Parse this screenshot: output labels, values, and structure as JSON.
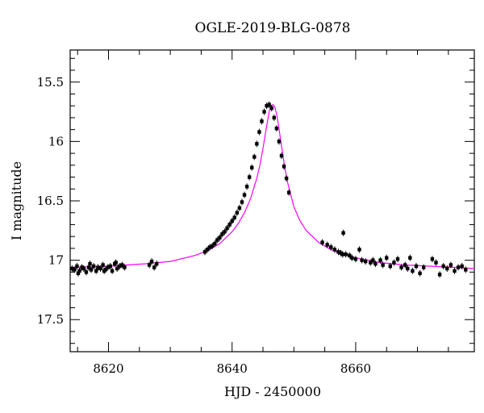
{
  "chart_data": {
    "type": "scatter",
    "title": "OGLE-2019-BLG-0878",
    "xlabel": "HJD - 2450000",
    "ylabel": "I magnitude",
    "xlim": [
      8613.8,
      8679.2
    ],
    "ylim": [
      17.77,
      15.23
    ],
    "y_inverted": true,
    "x_ticks": [
      8620,
      8640,
      8660
    ],
    "x_tick_labels": [
      "8620",
      "8640",
      "8660"
    ],
    "y_ticks": [
      15.5,
      16,
      16.5,
      17,
      17.5
    ],
    "y_tick_labels": [
      "15.5",
      "16",
      "16.5",
      "17",
      "17.5"
    ],
    "grid": false,
    "legend": "none",
    "colors": {
      "data": "#000000",
      "model": "#ff00ff",
      "axes": "#000000"
    },
    "series": [
      {
        "kind": "points",
        "x": [
          8614.1,
          8614.5,
          8614.9,
          8615.3,
          8615.7,
          8616.0,
          8616.4,
          8616.8,
          8617.2,
          8617.6,
          8618.0,
          8618.3,
          8618.7,
          8619.1,
          8619.5,
          8619.9,
          8620.3,
          8620.6,
          8621.0,
          8621.4,
          8621.8,
          8622.2,
          8622.6,
          8615.1,
          8617.0,
          8619.3,
          8621.2,
          8626.6,
          8627.0,
          8627.4,
          8627.8,
          8635.6,
          8636.0,
          8636.4,
          8636.8,
          8637.2,
          8637.6,
          8638.0,
          8638.4,
          8638.8,
          8639.2,
          8639.6,
          8640.0,
          8640.4,
          8640.8,
          8641.2,
          8641.6,
          8642.0,
          8642.4,
          8642.8,
          8643.2,
          8643.6,
          8644.0,
          8644.4,
          8644.8,
          8645.2,
          8645.6,
          8646.0,
          8646.4,
          8646.8,
          8647.2,
          8647.6,
          8648.0,
          8648.4,
          8648.8,
          8649.2,
          8654.6,
          8655.4,
          8656.0,
          8656.6,
          8657.2,
          8657.6,
          8658.0,
          8658.4,
          8659.0,
          8659.4,
          8660.0,
          8660.6,
          8661.0,
          8661.6,
          8662.4,
          8662.8,
          8663.2,
          8664.0,
          8664.4,
          8665.0,
          8665.6,
          8666.2,
          8666.8,
          8667.4,
          8668.0,
          8668.4,
          8668.8,
          8669.2,
          8669.8,
          8670.4,
          8671.0,
          8672.4,
          8673.0,
          8673.6,
          8674.2,
          8674.8,
          8675.4,
          8676.0,
          8676.6,
          8677.2,
          8677.8,
          8657.9
        ],
        "y": [
          17.07,
          17.08,
          17.05,
          17.09,
          17.06,
          17.07,
          17.1,
          17.06,
          17.08,
          17.05,
          17.09,
          17.06,
          17.07,
          17.04,
          17.08,
          17.06,
          17.05,
          17.09,
          17.03,
          17.07,
          17.05,
          17.04,
          17.06,
          17.11,
          17.03,
          17.09,
          17.02,
          17.04,
          17.01,
          17.06,
          17.03,
          16.93,
          16.91,
          16.89,
          16.88,
          16.86,
          16.83,
          16.81,
          16.78,
          16.76,
          16.73,
          16.7,
          16.67,
          16.64,
          16.6,
          16.56,
          16.51,
          16.45,
          16.38,
          16.3,
          16.22,
          16.13,
          16.02,
          15.92,
          15.83,
          15.75,
          15.7,
          15.69,
          15.72,
          15.8,
          15.89,
          16.0,
          16.12,
          16.21,
          16.31,
          16.43,
          16.85,
          16.87,
          16.89,
          16.91,
          16.93,
          16.94,
          16.77,
          16.95,
          16.96,
          16.98,
          16.99,
          16.91,
          17.0,
          17.01,
          17.02,
          17.0,
          17.03,
          17.0,
          17.04,
          16.98,
          17.05,
          17.02,
          16.99,
          17.06,
          17.04,
          17.07,
          16.98,
          17.09,
          17.05,
          17.11,
          17.06,
          16.99,
          17.02,
          17.12,
          17.05,
          17.07,
          17.04,
          17.09,
          17.06,
          17.05,
          17.08,
          16.95
        ]
      },
      {
        "kind": "line",
        "model": "point-lens fit",
        "x": [
          8613.8,
          8620,
          8626,
          8630,
          8634,
          8636,
          8638,
          8640,
          8641,
          8642,
          8643,
          8644,
          8644.5,
          8645,
          8645.5,
          8646,
          8646.3,
          8646.6,
          8646.9,
          8647.2,
          8647.5,
          8648,
          8648.5,
          8649,
          8650,
          8651,
          8652,
          8654,
          8656,
          8658,
          8660,
          8664,
          8668,
          8672,
          8676,
          8679.2
        ],
        "y": [
          17.06,
          17.05,
          17.03,
          17.01,
          16.96,
          16.92,
          16.86,
          16.76,
          16.69,
          16.6,
          16.48,
          16.31,
          16.2,
          16.06,
          15.9,
          15.75,
          15.7,
          15.69,
          15.71,
          15.77,
          15.86,
          16.04,
          16.21,
          16.35,
          16.55,
          16.67,
          16.75,
          16.85,
          16.91,
          16.95,
          16.98,
          17.02,
          17.04,
          17.05,
          17.06,
          17.07
        ]
      }
    ]
  }
}
